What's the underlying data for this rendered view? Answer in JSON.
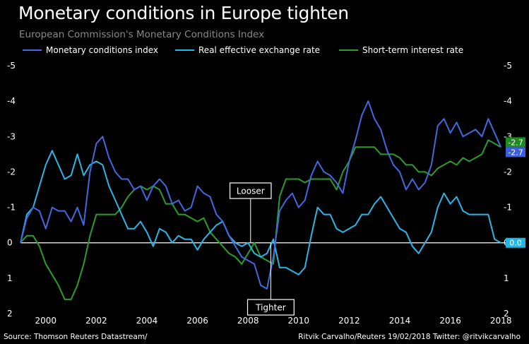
{
  "header": {
    "title": "Monetary conditions in Europe tighten",
    "subtitle": "European Commission's Monetary Conditions Index"
  },
  "footer": {
    "source": "Source: Thomson Reuters Datastream/",
    "credit": "Ritvik Carvalho/Reuters 19/02/2018 Twitter: @ritvikcarvalho"
  },
  "chart_data": {
    "type": "line",
    "title": "Monetary conditions in Europe tighten",
    "subtitle": "European Commission's Monetary Conditions Index",
    "xlabel": "",
    "ylabel": "",
    "x_range": [
      1999.0,
      2018.3
    ],
    "ylim": [
      -5,
      2
    ],
    "y_inverted": true,
    "y_ticks_left": [
      "-5",
      "-4",
      "-3",
      "-2",
      "-1",
      "0",
      "1",
      "2"
    ],
    "y_ticks_right": [
      "-5",
      "-4",
      "-3",
      "-2",
      "-1",
      "0",
      "1",
      "2"
    ],
    "y_tick_values": [
      -5,
      -4,
      -3,
      -2,
      -1,
      0,
      1,
      2
    ],
    "x_ticks": [
      "2000",
      "2002",
      "2004",
      "2006",
      "2008",
      "2010",
      "2012",
      "2014",
      "2016",
      "2018"
    ],
    "x_tick_values": [
      2000,
      2002,
      2004,
      2006,
      2008,
      2010,
      2012,
      2014,
      2016,
      2018
    ],
    "grid": false,
    "zero_line": true,
    "legend_position": "top",
    "x": [
      1999.0,
      1999.25,
      1999.5,
      1999.75,
      2000.0,
      2000.25,
      2000.5,
      2000.75,
      2001.0,
      2001.25,
      2001.5,
      2001.75,
      2002.0,
      2002.25,
      2002.5,
      2002.75,
      2003.0,
      2003.25,
      2003.5,
      2003.75,
      2004.0,
      2004.25,
      2004.5,
      2004.75,
      2005.0,
      2005.25,
      2005.5,
      2005.75,
      2006.0,
      2006.25,
      2006.5,
      2006.75,
      2007.0,
      2007.25,
      2007.5,
      2007.75,
      2008.0,
      2008.25,
      2008.5,
      2008.75,
      2009.0,
      2009.25,
      2009.5,
      2009.75,
      2010.0,
      2010.25,
      2010.5,
      2010.75,
      2011.0,
      2011.25,
      2011.5,
      2011.75,
      2012.0,
      2012.25,
      2012.5,
      2012.75,
      2013.0,
      2013.25,
      2013.5,
      2013.75,
      2014.0,
      2014.25,
      2014.5,
      2014.75,
      2015.0,
      2015.25,
      2015.5,
      2015.75,
      2016.0,
      2016.25,
      2016.5,
      2016.75,
      2017.0,
      2017.25,
      2017.5,
      2017.75,
      2018.0
    ],
    "series": [
      {
        "name": "Monetary conditions index",
        "color": "#4169e1",
        "values": [
          0.0,
          -0.7,
          -1.0,
          -0.9,
          -0.4,
          -1.0,
          -0.9,
          -0.9,
          -0.6,
          -1.0,
          -0.5,
          -2.0,
          -2.8,
          -3.0,
          -2.4,
          -2.0,
          -1.8,
          -1.8,
          -1.5,
          -1.6,
          -1.2,
          -1.6,
          -1.8,
          -1.6,
          -1.1,
          -1.2,
          -0.9,
          -1.0,
          -1.6,
          -1.4,
          -1.3,
          -0.8,
          -0.6,
          -0.2,
          0.1,
          0.4,
          0.5,
          0.6,
          1.2,
          1.3,
          0.4,
          -0.9,
          -1.2,
          -1.4,
          -1.0,
          -1.2,
          -1.9,
          -2.3,
          -2.0,
          -1.9,
          -1.7,
          -1.4,
          -2.3,
          -2.9,
          -3.6,
          -4.0,
          -3.5,
          -3.2,
          -2.6,
          -2.2,
          -2.0,
          -1.5,
          -1.8,
          -1.5,
          -1.7,
          -2.2,
          -3.3,
          -3.5,
          -3.1,
          -3.4,
          -3.0,
          -3.1,
          -3.2,
          -3.0,
          -3.5,
          -3.1,
          -2.7
        ]
      },
      {
        "name": "Real effective exchange rate",
        "color": "#29b6e8",
        "values": [
          0.0,
          -0.8,
          -1.0,
          -1.6,
          -2.2,
          -2.6,
          -2.2,
          -1.8,
          -1.9,
          -2.5,
          -1.9,
          -2.2,
          -2.3,
          -2.2,
          -1.6,
          -1.2,
          -0.8,
          -0.4,
          -0.4,
          -0.6,
          -0.3,
          0.1,
          -0.4,
          -0.3,
          0.0,
          -0.2,
          -0.1,
          -0.1,
          0.2,
          -0.1,
          -0.3,
          -0.5,
          -0.6,
          -0.2,
          0.0,
          0.1,
          0.0,
          0.3,
          0.4,
          0.3,
          -0.1,
          0.7,
          0.7,
          0.8,
          0.9,
          0.7,
          -0.2,
          -1.0,
          -0.8,
          -0.8,
          -0.4,
          -0.3,
          -0.4,
          -0.5,
          -0.8,
          -0.8,
          -1.1,
          -1.3,
          -1.0,
          -0.7,
          -0.4,
          -0.3,
          0.1,
          0.3,
          0.0,
          -0.3,
          -1.0,
          -1.4,
          -1.1,
          -1.3,
          -0.9,
          -0.8,
          -0.8,
          -0.8,
          -0.8,
          -0.1,
          0.0
        ]
      },
      {
        "name": "Short-term interest rate",
        "color": "#2a9d2a",
        "values": [
          0.0,
          -0.2,
          -0.2,
          0.1,
          0.6,
          0.9,
          1.2,
          1.6,
          1.6,
          1.2,
          0.6,
          -0.2,
          -0.8,
          -0.8,
          -0.8,
          -0.8,
          -1.0,
          -1.3,
          -1.5,
          -1.6,
          -1.5,
          -1.6,
          -1.5,
          -1.1,
          -1.1,
          -0.8,
          -0.8,
          -0.7,
          -0.6,
          -0.7,
          -0.3,
          -0.1,
          0.1,
          0.3,
          0.4,
          0.6,
          0.3,
          0.0,
          0.4,
          0.5,
          0.6,
          -1.3,
          -1.8,
          -1.8,
          -1.8,
          -1.7,
          -1.8,
          -1.8,
          -1.8,
          -1.8,
          -1.5,
          -2.0,
          -2.3,
          -2.7,
          -2.7,
          -2.7,
          -2.7,
          -2.5,
          -2.5,
          -2.5,
          -2.4,
          -2.2,
          -2.2,
          -2.0,
          -2.0,
          -1.9,
          -2.1,
          -2.2,
          -2.3,
          -2.2,
          -2.4,
          -2.3,
          -2.4,
          -2.5,
          -2.9,
          -2.8,
          -2.7
        ]
      }
    ],
    "end_labels": [
      {
        "series": "Short-term interest rate",
        "text": "-2.7",
        "value": -2.7,
        "color": "#1f8a1f"
      },
      {
        "series": "Monetary conditions index",
        "text": "-2.7",
        "value": -2.7,
        "color": "#3a5fe0"
      },
      {
        "series": "Real effective exchange rate",
        "text": "0.0",
        "value": 0.0,
        "color": "#22b8e6"
      }
    ],
    "annotations": [
      {
        "text": "Looser",
        "x": 2008.1,
        "direction": "up"
      },
      {
        "text": "Tighter",
        "x": 2008.9,
        "direction": "down"
      }
    ]
  }
}
